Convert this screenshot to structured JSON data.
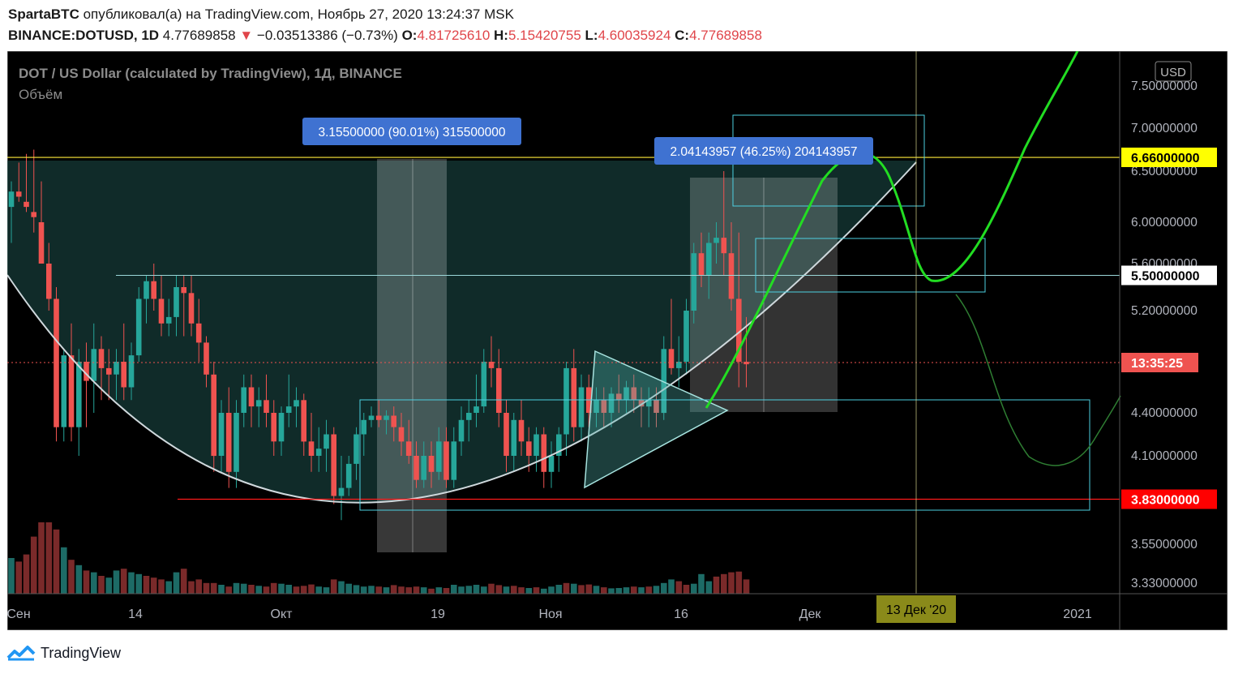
{
  "header": {
    "author": "SpartaBTC",
    "published_text": "опубликовал(а) на TradingView.com, Ноябрь 27, 2020 13:24:37 MSK",
    "symbol": "BINANCE:DOTUSD, 1D",
    "last": "4.77689858",
    "change_arrow": "▼",
    "change": "−0.03513386 (−0.73%)",
    "o_label": "O:",
    "o": "4.81725610",
    "h_label": "H:",
    "h": "5.15420755",
    "l_label": "L:",
    "l": "4.60035924",
    "c_label": "C:",
    "c": "4.77689858"
  },
  "footer": {
    "brand": "TradingView"
  },
  "colors": {
    "bg": "#000000",
    "up": "#26a69a",
    "down": "#ef5350",
    "vol_up": "#1d6b66",
    "vol_down": "#7a2a2a",
    "green_proj": "#22dd22",
    "cyan_box": "#4dd0e1",
    "yellow_line": "#ffeb3b",
    "red_line": "#ff1a1a"
  },
  "chart_data": {
    "type": "candlestick",
    "title": "DOT / US Dollar (calculated by TradingView), 1Д, BINANCE",
    "subtitle": "Объём",
    "currency": "USD",
    "y_ticks": [
      "7.50000000",
      "7.00000000",
      "6.50000000",
      "6.00000000",
      "5.60000000",
      "5.20000000",
      "4.40000000",
      "4.10000000",
      "3.55000000",
      "3.33000000"
    ],
    "x_ticks": [
      "Сен",
      "14",
      "Окт",
      "19",
      "Ноя",
      "16",
      "Дек",
      "2021"
    ],
    "price_labels": [
      {
        "text": "6.66000000",
        "color": "#ffff00",
        "text_color": "#000000"
      },
      {
        "text": "5.50000000",
        "color": "#ffffff",
        "text_color": "#000000"
      },
      {
        "text": "13:35:25",
        "color": "#ef5350",
        "text_color": "#ffffff"
      },
      {
        "text": "3.83000000",
        "color": "#ff0000",
        "text_color": "#ffffff"
      }
    ],
    "date_label": "13 Дек '20",
    "measures": [
      {
        "text": "3.15500000 (90.01%) 315500000"
      },
      {
        "text": "2.04143957 (46.25%) 204143957"
      }
    ],
    "horizontal_levels": [
      6.66,
      5.5,
      3.83
    ],
    "candles": [
      {
        "o": 6.15,
        "h": 6.4,
        "l": 5.8,
        "c": 6.3
      },
      {
        "o": 6.3,
        "h": 6.6,
        "l": 6.2,
        "c": 6.25
      },
      {
        "o": 6.2,
        "h": 6.7,
        "l": 6.1,
        "c": 6.15
      },
      {
        "o": 6.1,
        "h": 6.75,
        "l": 5.9,
        "c": 6.05
      },
      {
        "o": 6.0,
        "h": 6.4,
        "l": 5.6,
        "c": 5.6
      },
      {
        "o": 5.6,
        "h": 5.8,
        "l": 5.2,
        "c": 5.3
      },
      {
        "o": 5.3,
        "h": 5.4,
        "l": 4.2,
        "c": 4.3
      },
      {
        "o": 4.3,
        "h": 4.9,
        "l": 4.2,
        "c": 4.85
      },
      {
        "o": 4.85,
        "h": 5.1,
        "l": 4.2,
        "c": 4.3
      },
      {
        "o": 4.3,
        "h": 4.9,
        "l": 4.1,
        "c": 4.8
      },
      {
        "o": 4.8,
        "h": 4.95,
        "l": 4.3,
        "c": 4.65
      },
      {
        "o": 4.65,
        "h": 5.1,
        "l": 4.4,
        "c": 4.9
      },
      {
        "o": 4.9,
        "h": 5.0,
        "l": 4.5,
        "c": 4.75
      },
      {
        "o": 4.75,
        "h": 4.9,
        "l": 4.5,
        "c": 4.7
      },
      {
        "o": 4.7,
        "h": 4.9,
        "l": 4.5,
        "c": 4.8
      },
      {
        "o": 4.8,
        "h": 5.1,
        "l": 4.5,
        "c": 4.6
      },
      {
        "o": 4.6,
        "h": 4.95,
        "l": 4.5,
        "c": 4.85
      },
      {
        "o": 4.85,
        "h": 5.4,
        "l": 4.8,
        "c": 5.3
      },
      {
        "o": 5.3,
        "h": 5.5,
        "l": 5.1,
        "c": 5.45
      },
      {
        "o": 5.45,
        "h": 5.6,
        "l": 5.2,
        "c": 5.3
      },
      {
        "o": 5.3,
        "h": 5.5,
        "l": 5.0,
        "c": 5.1
      },
      {
        "o": 5.1,
        "h": 5.3,
        "l": 5.0,
        "c": 5.15
      },
      {
        "o": 5.15,
        "h": 5.5,
        "l": 5.0,
        "c": 5.4
      },
      {
        "o": 5.4,
        "h": 5.5,
        "l": 5.0,
        "c": 5.35
      },
      {
        "o": 5.35,
        "h": 5.5,
        "l": 5.0,
        "c": 5.1
      },
      {
        "o": 5.1,
        "h": 5.3,
        "l": 4.8,
        "c": 4.95
      },
      {
        "o": 4.95,
        "h": 5.0,
        "l": 4.6,
        "c": 4.7
      },
      {
        "o": 4.7,
        "h": 4.8,
        "l": 4.0,
        "c": 4.1
      },
      {
        "o": 4.1,
        "h": 4.5,
        "l": 4.0,
        "c": 4.4
      },
      {
        "o": 4.4,
        "h": 4.6,
        "l": 3.9,
        "c": 4.0
      },
      {
        "o": 4.0,
        "h": 4.5,
        "l": 3.9,
        "c": 4.4
      },
      {
        "o": 4.4,
        "h": 4.7,
        "l": 4.3,
        "c": 4.6
      },
      {
        "o": 4.6,
        "h": 4.7,
        "l": 4.3,
        "c": 4.45
      },
      {
        "o": 4.45,
        "h": 4.6,
        "l": 4.3,
        "c": 4.5
      },
      {
        "o": 4.5,
        "h": 4.7,
        "l": 4.3,
        "c": 4.4
      },
      {
        "o": 4.4,
        "h": 4.5,
        "l": 4.1,
        "c": 4.2
      },
      {
        "o": 4.2,
        "h": 4.45,
        "l": 4.1,
        "c": 4.4
      },
      {
        "o": 4.4,
        "h": 4.7,
        "l": 4.3,
        "c": 4.45
      },
      {
        "o": 4.45,
        "h": 4.6,
        "l": 4.3,
        "c": 4.5
      },
      {
        "o": 4.5,
        "h": 4.55,
        "l": 4.1,
        "c": 4.2
      },
      {
        "o": 4.2,
        "h": 4.4,
        "l": 4.0,
        "c": 4.1
      },
      {
        "o": 4.1,
        "h": 4.3,
        "l": 4.0,
        "c": 4.15
      },
      {
        "o": 4.15,
        "h": 4.35,
        "l": 4.0,
        "c": 4.25
      },
      {
        "o": 4.25,
        "h": 4.3,
        "l": 3.8,
        "c": 3.85
      },
      {
        "o": 3.85,
        "h": 4.1,
        "l": 3.7,
        "c": 3.9
      },
      {
        "o": 3.9,
        "h": 4.1,
        "l": 3.85,
        "c": 4.05
      },
      {
        "o": 4.05,
        "h": 4.3,
        "l": 3.95,
        "c": 4.25
      },
      {
        "o": 4.25,
        "h": 4.4,
        "l": 4.1,
        "c": 4.35
      },
      {
        "o": 4.35,
        "h": 4.45,
        "l": 4.3,
        "c": 4.38
      },
      {
        "o": 4.38,
        "h": 4.5,
        "l": 4.3,
        "c": 4.35
      },
      {
        "o": 4.35,
        "h": 4.42,
        "l": 4.25,
        "c": 4.38
      },
      {
        "o": 4.38,
        "h": 4.45,
        "l": 4.2,
        "c": 4.3
      },
      {
        "o": 4.3,
        "h": 4.4,
        "l": 4.1,
        "c": 4.2
      },
      {
        "o": 4.2,
        "h": 4.35,
        "l": 4.05,
        "c": 4.1
      },
      {
        "o": 4.1,
        "h": 4.2,
        "l": 3.9,
        "c": 3.95
      },
      {
        "o": 3.95,
        "h": 4.2,
        "l": 3.9,
        "c": 4.1
      },
      {
        "o": 4.1,
        "h": 4.2,
        "l": 3.9,
        "c": 4.0
      },
      {
        "o": 4.0,
        "h": 4.3,
        "l": 3.95,
        "c": 4.2
      },
      {
        "o": 4.2,
        "h": 4.3,
        "l": 3.9,
        "c": 3.95
      },
      {
        "o": 3.95,
        "h": 4.3,
        "l": 3.9,
        "c": 4.2
      },
      {
        "o": 4.2,
        "h": 4.45,
        "l": 4.1,
        "c": 4.35
      },
      {
        "o": 4.35,
        "h": 4.5,
        "l": 4.2,
        "c": 4.4
      },
      {
        "o": 4.4,
        "h": 4.7,
        "l": 4.3,
        "c": 4.45
      },
      {
        "o": 4.45,
        "h": 4.9,
        "l": 4.4,
        "c": 4.8
      },
      {
        "o": 4.8,
        "h": 5.0,
        "l": 4.6,
        "c": 4.75
      },
      {
        "o": 4.75,
        "h": 4.9,
        "l": 4.3,
        "c": 4.4
      },
      {
        "o": 4.4,
        "h": 4.5,
        "l": 4.0,
        "c": 4.1
      },
      {
        "o": 4.1,
        "h": 4.4,
        "l": 4.0,
        "c": 4.35
      },
      {
        "o": 4.35,
        "h": 4.5,
        "l": 4.1,
        "c": 4.2
      },
      {
        "o": 4.2,
        "h": 4.3,
        "l": 4.0,
        "c": 4.1
      },
      {
        "o": 4.1,
        "h": 4.3,
        "l": 4.0,
        "c": 4.25
      },
      {
        "o": 4.25,
        "h": 4.3,
        "l": 3.9,
        "c": 4.0
      },
      {
        "o": 4.0,
        "h": 4.2,
        "l": 3.9,
        "c": 4.1
      },
      {
        "o": 4.1,
        "h": 4.3,
        "l": 4.0,
        "c": 4.25
      },
      {
        "o": 4.25,
        "h": 4.8,
        "l": 4.1,
        "c": 4.75
      },
      {
        "o": 4.75,
        "h": 4.9,
        "l": 4.2,
        "c": 4.3
      },
      {
        "o": 4.3,
        "h": 4.7,
        "l": 4.2,
        "c": 4.6
      },
      {
        "o": 4.6,
        "h": 4.7,
        "l": 4.3,
        "c": 4.4
      },
      {
        "o": 4.4,
        "h": 4.6,
        "l": 4.3,
        "c": 4.5
      },
      {
        "o": 4.5,
        "h": 4.6,
        "l": 4.3,
        "c": 4.4
      },
      {
        "o": 4.4,
        "h": 4.6,
        "l": 4.3,
        "c": 4.55
      },
      {
        "o": 4.55,
        "h": 4.7,
        "l": 4.4,
        "c": 4.5
      },
      {
        "o": 4.5,
        "h": 4.65,
        "l": 4.4,
        "c": 4.6
      },
      {
        "o": 4.6,
        "h": 4.7,
        "l": 4.4,
        "c": 4.5
      },
      {
        "o": 4.5,
        "h": 4.6,
        "l": 4.3,
        "c": 4.45
      },
      {
        "o": 4.45,
        "h": 4.6,
        "l": 4.3,
        "c": 4.5
      },
      {
        "o": 4.5,
        "h": 4.6,
        "l": 4.3,
        "c": 4.4
      },
      {
        "o": 4.4,
        "h": 5.0,
        "l": 4.35,
        "c": 4.9
      },
      {
        "o": 4.9,
        "h": 5.3,
        "l": 4.7,
        "c": 4.75
      },
      {
        "o": 4.75,
        "h": 5.0,
        "l": 4.6,
        "c": 4.8
      },
      {
        "o": 4.8,
        "h": 5.3,
        "l": 4.7,
        "c": 5.2
      },
      {
        "o": 5.2,
        "h": 5.8,
        "l": 5.1,
        "c": 5.7
      },
      {
        "o": 5.7,
        "h": 5.9,
        "l": 5.4,
        "c": 5.5
      },
      {
        "o": 5.5,
        "h": 5.9,
        "l": 5.3,
        "c": 5.8
      },
      {
        "o": 5.8,
        "h": 6.0,
        "l": 5.6,
        "c": 5.85
      },
      {
        "o": 5.85,
        "h": 6.5,
        "l": 5.5,
        "c": 5.7
      },
      {
        "o": 5.7,
        "h": 6.0,
        "l": 5.2,
        "c": 5.3
      },
      {
        "o": 5.3,
        "h": 5.9,
        "l": 4.6,
        "c": 4.8
      },
      {
        "o": 4.8,
        "h": 5.15,
        "l": 4.6,
        "c": 4.78
      }
    ],
    "volumes": [
      {
        "v": 100,
        "up": true
      },
      {
        "v": 90,
        "up": false
      },
      {
        "v": 110,
        "up": false
      },
      {
        "v": 160,
        "up": false
      },
      {
        "v": 200,
        "up": false
      },
      {
        "v": 200,
        "up": false
      },
      {
        "v": 180,
        "up": false
      },
      {
        "v": 130,
        "up": true
      },
      {
        "v": 95,
        "up": false
      },
      {
        "v": 80,
        "up": true
      },
      {
        "v": 65,
        "up": false
      },
      {
        "v": 60,
        "up": true
      },
      {
        "v": 50,
        "up": false
      },
      {
        "v": 45,
        "up": true
      },
      {
        "v": 65,
        "up": true
      },
      {
        "v": 70,
        "up": false
      },
      {
        "v": 60,
        "up": true
      },
      {
        "v": 55,
        "up": true
      },
      {
        "v": 50,
        "up": false
      },
      {
        "v": 45,
        "up": false
      },
      {
        "v": 40,
        "up": false
      },
      {
        "v": 35,
        "up": true
      },
      {
        "v": 60,
        "up": true
      },
      {
        "v": 70,
        "up": false
      },
      {
        "v": 35,
        "up": false
      },
      {
        "v": 40,
        "up": false
      },
      {
        "v": 30,
        "up": false
      },
      {
        "v": 30,
        "up": false
      },
      {
        "v": 25,
        "up": true
      },
      {
        "v": 20,
        "up": false
      },
      {
        "v": 30,
        "up": true
      },
      {
        "v": 28,
        "up": true
      },
      {
        "v": 25,
        "up": false
      },
      {
        "v": 22,
        "up": true
      },
      {
        "v": 20,
        "up": false
      },
      {
        "v": 30,
        "up": false
      },
      {
        "v": 28,
        "up": true
      },
      {
        "v": 25,
        "up": true
      },
      {
        "v": 20,
        "up": false
      },
      {
        "v": 22,
        "up": false
      },
      {
        "v": 26,
        "up": false
      },
      {
        "v": 20,
        "up": true
      },
      {
        "v": 18,
        "up": true
      },
      {
        "v": 40,
        "up": false
      },
      {
        "v": 35,
        "up": true
      },
      {
        "v": 28,
        "up": true
      },
      {
        "v": 24,
        "up": true
      },
      {
        "v": 20,
        "up": true
      },
      {
        "v": 22,
        "up": true
      },
      {
        "v": 20,
        "up": false
      },
      {
        "v": 18,
        "up": true
      },
      {
        "v": 24,
        "up": false
      },
      {
        "v": 20,
        "up": false
      },
      {
        "v": 18,
        "up": false
      },
      {
        "v": 20,
        "up": false
      },
      {
        "v": 18,
        "up": true
      },
      {
        "v": 14,
        "up": false
      },
      {
        "v": 18,
        "up": true
      },
      {
        "v": 16,
        "up": false
      },
      {
        "v": 25,
        "up": true
      },
      {
        "v": 20,
        "up": true
      },
      {
        "v": 22,
        "up": true
      },
      {
        "v": 25,
        "up": true
      },
      {
        "v": 20,
        "up": true
      },
      {
        "v": 28,
        "up": false
      },
      {
        "v": 24,
        "up": false
      },
      {
        "v": 20,
        "up": true
      },
      {
        "v": 22,
        "up": false
      },
      {
        "v": 18,
        "up": false
      },
      {
        "v": 16,
        "up": true
      },
      {
        "v": 18,
        "up": false
      },
      {
        "v": 14,
        "up": true
      },
      {
        "v": 20,
        "up": true
      },
      {
        "v": 25,
        "up": true
      },
      {
        "v": 30,
        "up": false
      },
      {
        "v": 28,
        "up": true
      },
      {
        "v": 24,
        "up": false
      },
      {
        "v": 26,
        "up": false
      },
      {
        "v": 22,
        "up": true
      },
      {
        "v": 18,
        "up": false
      },
      {
        "v": 15,
        "up": true
      },
      {
        "v": 16,
        "up": true
      },
      {
        "v": 18,
        "up": true
      },
      {
        "v": 20,
        "up": false
      },
      {
        "v": 18,
        "up": true
      },
      {
        "v": 20,
        "up": false
      },
      {
        "v": 22,
        "up": true
      },
      {
        "v": 30,
        "up": true
      },
      {
        "v": 40,
        "up": true
      },
      {
        "v": 35,
        "up": false
      },
      {
        "v": 25,
        "up": false
      },
      {
        "v": 28,
        "up": true
      },
      {
        "v": 55,
        "up": true
      },
      {
        "v": 35,
        "up": true
      },
      {
        "v": 48,
        "up": false
      },
      {
        "v": 55,
        "up": false
      },
      {
        "v": 60,
        "up": false
      },
      {
        "v": 62,
        "up": false
      },
      {
        "v": 40,
        "up": false
      }
    ]
  }
}
